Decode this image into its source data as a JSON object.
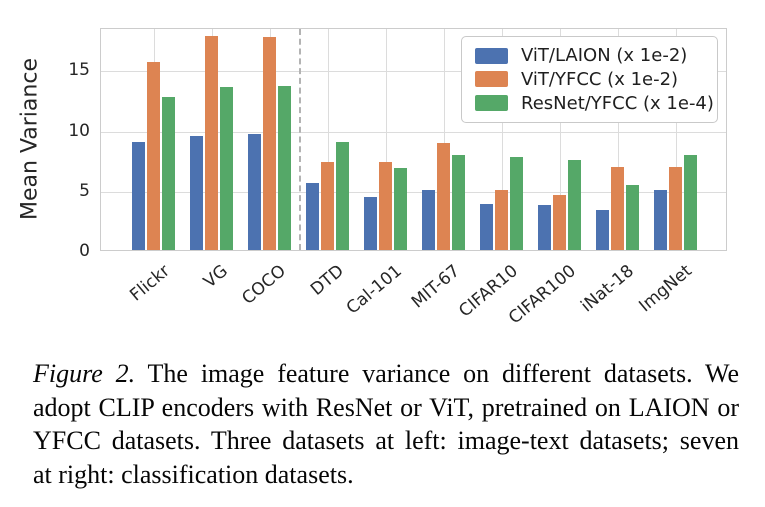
{
  "chart_data": {
    "type": "bar",
    "title": "",
    "xlabel": "",
    "ylabel": "Mean Variance",
    "categories": [
      "Flickr",
      "VG",
      "COCO",
      "DTD",
      "Cal-101",
      "MIT-67",
      "CIFAR10",
      "CIFAR100",
      "iNat-18",
      "ImgNet"
    ],
    "series": [
      {
        "name": "ViT/LAION (x 1e-2)",
        "color": "#4C72B0",
        "values": [
          9.0,
          9.5,
          9.6,
          5.6,
          4.4,
          5.0,
          3.8,
          3.7,
          3.3,
          5.0
        ]
      },
      {
        "name": "ViT/YFCC (x 1e-2)",
        "color": "#DD8452",
        "values": [
          15.6,
          17.8,
          17.7,
          7.3,
          7.3,
          8.9,
          5.0,
          4.6,
          6.9,
          6.9
        ]
      },
      {
        "name": "ResNet/YFCC (x 1e-4)",
        "color": "#55A868",
        "values": [
          12.7,
          13.5,
          13.6,
          9.0,
          6.8,
          7.9,
          7.7,
          7.5,
          5.4,
          7.9
        ]
      }
    ],
    "yticks": [
      0,
      5,
      10,
      15
    ],
    "ylim": [
      0,
      18.5
    ],
    "grid": true,
    "legend_position": "upper right",
    "separator_after_category_index": 2,
    "colors": {
      "gridline": "#dcdcdc",
      "spine": "#cccccc",
      "separator": "#b3b3b3",
      "tick_text": "#262626"
    }
  },
  "caption": {
    "label": "Figure 2.",
    "line1": "The image feature variance on different datasets.  We",
    "line2": "adopt CLIP encoders with ResNet or ViT, pretrained on LAION or",
    "line3": "YFCC datasets. Three datasets at left: image-text datasets; seven",
    "line4": "at right: classification datasets."
  }
}
